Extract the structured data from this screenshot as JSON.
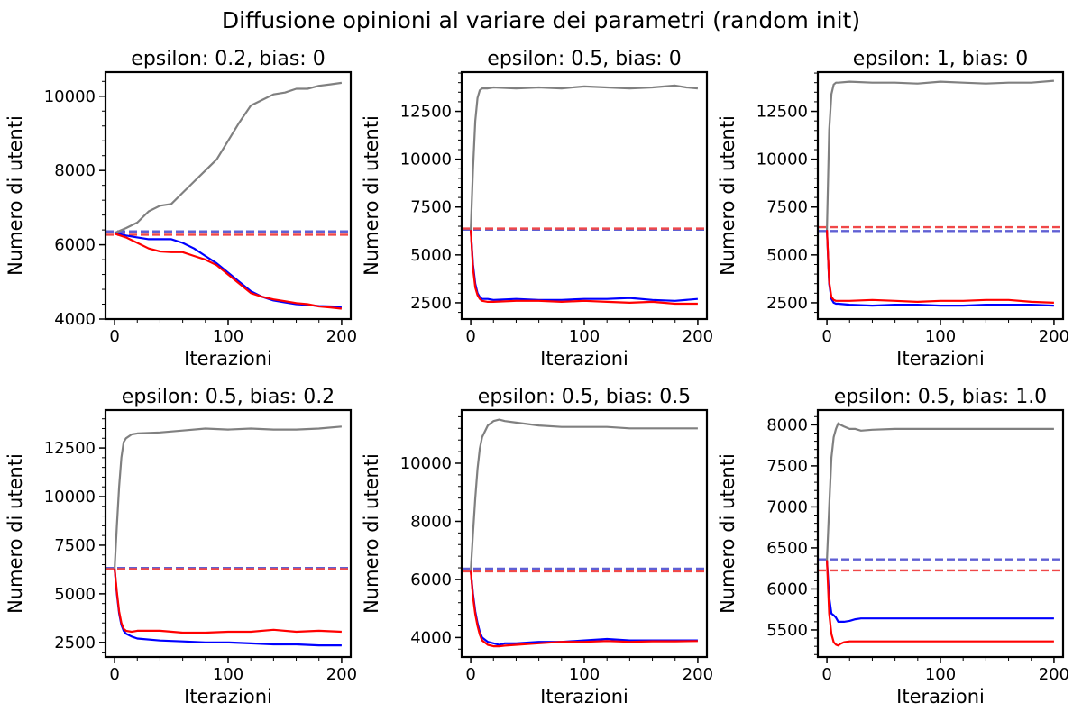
{
  "figure": {
    "title": "Diffusione opinioni al variare dei parametri (random init)"
  },
  "colors": {
    "neutral": "#808080",
    "blue": "#0000ff",
    "red": "#ff0000",
    "blue_ref": "#5f5fd4",
    "red_ref": "#f04848"
  },
  "chart_data": [
    {
      "type": "line",
      "title": "epsilon: 0.2, bias: 0",
      "xlabel": "Iterazioni",
      "ylabel": "Numero di utenti",
      "xlim": [
        -8,
        208
      ],
      "ylim": [
        4000,
        10650
      ],
      "xticks": [
        0,
        100,
        200
      ],
      "yticks": [
        4000,
        6000,
        8000,
        10000
      ],
      "series": [
        {
          "color": "grey",
          "x": [
            0,
            10,
            20,
            30,
            40,
            50,
            60,
            70,
            80,
            90,
            100,
            110,
            120,
            130,
            140,
            150,
            160,
            170,
            180,
            190,
            200
          ],
          "y": [
            6320,
            6450,
            6600,
            6900,
            7050,
            7100,
            7400,
            7700,
            8000,
            8300,
            8800,
            9300,
            9750,
            9900,
            10050,
            10100,
            10200,
            10200,
            10280,
            10320,
            10360
          ]
        },
        {
          "color": "blue",
          "x": [
            0,
            10,
            20,
            30,
            40,
            50,
            60,
            70,
            80,
            90,
            100,
            110,
            120,
            130,
            140,
            150,
            160,
            170,
            180,
            190,
            200
          ],
          "y": [
            6320,
            6250,
            6200,
            6150,
            6150,
            6150,
            6050,
            5900,
            5700,
            5500,
            5250,
            5000,
            4750,
            4600,
            4500,
            4450,
            4400,
            4380,
            4350,
            4340,
            4330
          ]
        },
        {
          "color": "red",
          "x": [
            0,
            10,
            20,
            30,
            40,
            50,
            60,
            70,
            80,
            90,
            100,
            110,
            120,
            130,
            140,
            150,
            160,
            170,
            180,
            190,
            200
          ],
          "y": [
            6300,
            6200,
            6050,
            5900,
            5820,
            5800,
            5800,
            5700,
            5600,
            5450,
            5200,
            4950,
            4700,
            4600,
            4530,
            4480,
            4430,
            4400,
            4340,
            4310,
            4280
          ]
        }
      ],
      "reference_lines": [
        {
          "color": "blue_ref",
          "y": 6360
        },
        {
          "color": "red_ref",
          "y": 6270
        }
      ]
    },
    {
      "type": "line",
      "title": "epsilon: 0.5, bias: 0",
      "xlabel": "Iterazioni",
      "ylabel": "Numero di utenti",
      "xlim": [
        -8,
        208
      ],
      "ylim": [
        1650,
        14550
      ],
      "xticks": [
        0,
        100,
        200
      ],
      "yticks": [
        2500,
        5000,
        7500,
        10000,
        12500
      ],
      "series": [
        {
          "color": "grey",
          "x": [
            0,
            2,
            4,
            6,
            8,
            10,
            15,
            20,
            40,
            60,
            80,
            100,
            120,
            140,
            160,
            180,
            190,
            200
          ],
          "y": [
            6300,
            9500,
            12000,
            13200,
            13600,
            13700,
            13700,
            13750,
            13700,
            13750,
            13700,
            13800,
            13750,
            13700,
            13750,
            13850,
            13750,
            13700
          ]
        },
        {
          "color": "blue",
          "x": [
            0,
            2,
            4,
            6,
            8,
            10,
            15,
            20,
            40,
            60,
            80,
            100,
            120,
            140,
            160,
            180,
            200
          ],
          "y": [
            6300,
            4500,
            3500,
            3000,
            2800,
            2700,
            2700,
            2650,
            2700,
            2650,
            2650,
            2700,
            2700,
            2750,
            2650,
            2600,
            2700
          ]
        },
        {
          "color": "red",
          "x": [
            0,
            2,
            4,
            6,
            8,
            10,
            15,
            20,
            40,
            60,
            80,
            100,
            120,
            140,
            160,
            180,
            200
          ],
          "y": [
            6300,
            4300,
            3300,
            2900,
            2700,
            2600,
            2550,
            2550,
            2600,
            2600,
            2550,
            2600,
            2550,
            2500,
            2550,
            2450,
            2450
          ]
        }
      ],
      "reference_lines": [
        {
          "color": "blue_ref",
          "y": 6320
        },
        {
          "color": "red_ref",
          "y": 6380
        }
      ]
    },
    {
      "type": "line",
      "title": "epsilon: 1, bias: 0",
      "xlabel": "Iterazioni",
      "ylabel": "Numero di utenti",
      "xlim": [
        -8,
        208
      ],
      "ylim": [
        1650,
        14550
      ],
      "xticks": [
        0,
        100,
        200
      ],
      "yticks": [
        2500,
        5000,
        7500,
        10000,
        12500
      ],
      "series": [
        {
          "color": "grey",
          "x": [
            0,
            2,
            4,
            6,
            8,
            10,
            20,
            40,
            60,
            80,
            100,
            120,
            140,
            160,
            180,
            200
          ],
          "y": [
            6300,
            11500,
            13400,
            13900,
            14000,
            14000,
            14050,
            14000,
            14000,
            13950,
            14050,
            14000,
            13950,
            14000,
            14000,
            14100
          ]
        },
        {
          "color": "blue",
          "x": [
            0,
            2,
            4,
            6,
            8,
            10,
            20,
            40,
            60,
            80,
            100,
            120,
            140,
            160,
            180,
            200
          ],
          "y": [
            6300,
            3500,
            2700,
            2500,
            2450,
            2450,
            2400,
            2350,
            2400,
            2400,
            2350,
            2350,
            2400,
            2400,
            2400,
            2350
          ]
        },
        {
          "color": "red",
          "x": [
            0,
            2,
            4,
            6,
            8,
            10,
            20,
            40,
            60,
            80,
            100,
            120,
            140,
            160,
            180,
            200
          ],
          "y": [
            6300,
            3600,
            2800,
            2650,
            2600,
            2600,
            2600,
            2650,
            2600,
            2550,
            2600,
            2600,
            2650,
            2650,
            2550,
            2500
          ]
        }
      ],
      "reference_lines": [
        {
          "color": "blue_ref",
          "y": 6250
        },
        {
          "color": "red_ref",
          "y": 6450
        }
      ]
    },
    {
      "type": "line",
      "title": "epsilon: 0.5, bias: 0.2",
      "xlabel": "Iterazioni",
      "ylabel": "Numero di utenti",
      "xlim": [
        -8,
        208
      ],
      "ylim": [
        1750,
        14450
      ],
      "xticks": [
        0,
        100,
        200
      ],
      "yticks": [
        2500,
        5000,
        7500,
        10000,
        12500
      ],
      "series": [
        {
          "color": "grey",
          "x": [
            0,
            2,
            4,
            6,
            8,
            10,
            15,
            20,
            40,
            60,
            80,
            100,
            120,
            140,
            160,
            180,
            200
          ],
          "y": [
            6300,
            8500,
            10500,
            12000,
            12800,
            13000,
            13200,
            13250,
            13300,
            13400,
            13500,
            13450,
            13500,
            13450,
            13450,
            13500,
            13600
          ]
        },
        {
          "color": "blue",
          "x": [
            0,
            2,
            4,
            6,
            8,
            10,
            15,
            20,
            40,
            60,
            80,
            100,
            120,
            140,
            160,
            180,
            200
          ],
          "y": [
            6300,
            5000,
            4000,
            3400,
            3100,
            2950,
            2800,
            2700,
            2600,
            2550,
            2500,
            2500,
            2450,
            2400,
            2400,
            2350,
            2350
          ]
        },
        {
          "color": "red",
          "x": [
            0,
            2,
            4,
            6,
            8,
            10,
            15,
            20,
            40,
            60,
            80,
            100,
            120,
            140,
            160,
            180,
            200
          ],
          "y": [
            6300,
            5100,
            4100,
            3500,
            3200,
            3100,
            3050,
            3100,
            3100,
            3000,
            3000,
            3050,
            3050,
            3150,
            3050,
            3100,
            3050
          ]
        }
      ],
      "reference_lines": [
        {
          "color": "blue_ref",
          "y": 6330
        },
        {
          "color": "red_ref",
          "y": 6270
        }
      ]
    },
    {
      "type": "line",
      "title": "epsilon: 0.5, bias: 0.5",
      "xlabel": "Iterazioni",
      "ylabel": "Numero di utenti",
      "xlim": [
        -8,
        208
      ],
      "ylim": [
        3330,
        11830
      ],
      "xticks": [
        0,
        100,
        200
      ],
      "yticks": [
        4000,
        6000,
        8000,
        10000
      ],
      "series": [
        {
          "color": "grey",
          "x": [
            0,
            2,
            4,
            6,
            8,
            10,
            15,
            20,
            25,
            30,
            40,
            50,
            60,
            80,
            100,
            120,
            140,
            160,
            180,
            200
          ],
          "y": [
            6300,
            7600,
            8800,
            9800,
            10500,
            10900,
            11300,
            11450,
            11500,
            11450,
            11400,
            11350,
            11300,
            11250,
            11250,
            11250,
            11200,
            11200,
            11200,
            11200
          ]
        },
        {
          "color": "blue",
          "x": [
            0,
            2,
            4,
            6,
            8,
            10,
            15,
            20,
            25,
            30,
            40,
            60,
            80,
            100,
            120,
            140,
            160,
            180,
            200
          ],
          "y": [
            6300,
            5500,
            4900,
            4500,
            4200,
            4000,
            3850,
            3800,
            3750,
            3800,
            3800,
            3850,
            3850,
            3900,
            3950,
            3900,
            3900,
            3900,
            3900
          ]
        },
        {
          "color": "red",
          "x": [
            0,
            2,
            4,
            6,
            8,
            10,
            15,
            20,
            25,
            30,
            40,
            60,
            80,
            100,
            120,
            140,
            160,
            180,
            200
          ],
          "y": [
            6300,
            5400,
            4800,
            4400,
            4100,
            3900,
            3750,
            3700,
            3700,
            3720,
            3750,
            3800,
            3850,
            3850,
            3880,
            3850,
            3870,
            3870,
            3880
          ]
        }
      ],
      "reference_lines": [
        {
          "color": "blue_ref",
          "y": 6370
        },
        {
          "color": "red_ref",
          "y": 6280
        }
      ]
    },
    {
      "type": "line",
      "title": "epsilon: 0.5, bias: 1.0",
      "xlabel": "Iterazioni",
      "ylabel": "Numero di utenti",
      "xlim": [
        -8,
        208
      ],
      "ylim": [
        5170,
        8180
      ],
      "xticks": [
        0,
        100,
        200
      ],
      "yticks": [
        5500,
        6000,
        6500,
        7000,
        7500,
        8000
      ],
      "series": [
        {
          "color": "grey",
          "x": [
            0,
            2,
            4,
            6,
            8,
            10,
            12,
            15,
            20,
            25,
            30,
            40,
            60,
            100,
            150,
            200
          ],
          "y": [
            6350,
            7000,
            7600,
            7850,
            7950,
            8020,
            8000,
            7980,
            7950,
            7950,
            7930,
            7940,
            7950,
            7950,
            7950,
            7950
          ]
        },
        {
          "color": "blue",
          "x": [
            0,
            2,
            4,
            6,
            8,
            10,
            12,
            15,
            20,
            25,
            30,
            40,
            60,
            100,
            150,
            200
          ],
          "y": [
            6350,
            5900,
            5700,
            5680,
            5650,
            5600,
            5600,
            5600,
            5610,
            5630,
            5640,
            5640,
            5640,
            5640,
            5640,
            5640
          ]
        },
        {
          "color": "red",
          "x": [
            0,
            2,
            4,
            6,
            8,
            10,
            12,
            15,
            20,
            25,
            30,
            40,
            60,
            100,
            150,
            200
          ],
          "y": [
            6350,
            5700,
            5450,
            5350,
            5320,
            5310,
            5330,
            5350,
            5360,
            5360,
            5360,
            5360,
            5360,
            5360,
            5360,
            5360
          ]
        }
      ],
      "reference_lines": [
        {
          "color": "blue_ref",
          "y": 6360
        },
        {
          "color": "red_ref",
          "y": 6225
        }
      ]
    }
  ]
}
